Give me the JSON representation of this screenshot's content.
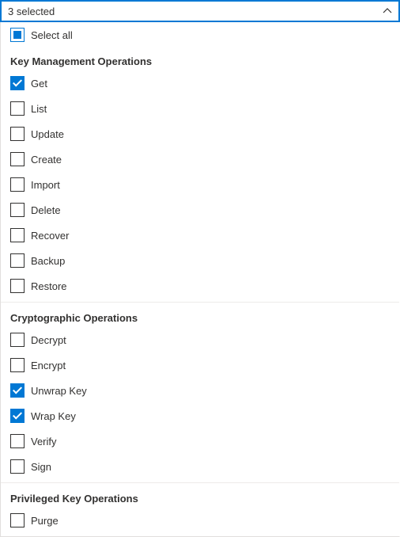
{
  "header": {
    "summary": "3 selected"
  },
  "selectAll": {
    "label": "Select all",
    "state": "indeterminate"
  },
  "groups": [
    {
      "title": "Key Management Operations",
      "items": [
        {
          "label": "Get",
          "checked": true
        },
        {
          "label": "List",
          "checked": false
        },
        {
          "label": "Update",
          "checked": false
        },
        {
          "label": "Create",
          "checked": false
        },
        {
          "label": "Import",
          "checked": false
        },
        {
          "label": "Delete",
          "checked": false
        },
        {
          "label": "Recover",
          "checked": false
        },
        {
          "label": "Backup",
          "checked": false
        },
        {
          "label": "Restore",
          "checked": false
        }
      ]
    },
    {
      "title": "Cryptographic Operations",
      "items": [
        {
          "label": "Decrypt",
          "checked": false
        },
        {
          "label": "Encrypt",
          "checked": false
        },
        {
          "label": "Unwrap Key",
          "checked": true
        },
        {
          "label": "Wrap Key",
          "checked": true
        },
        {
          "label": "Verify",
          "checked": false
        },
        {
          "label": "Sign",
          "checked": false
        }
      ]
    },
    {
      "title": "Privileged Key Operations",
      "items": [
        {
          "label": "Purge",
          "checked": false
        }
      ]
    }
  ]
}
